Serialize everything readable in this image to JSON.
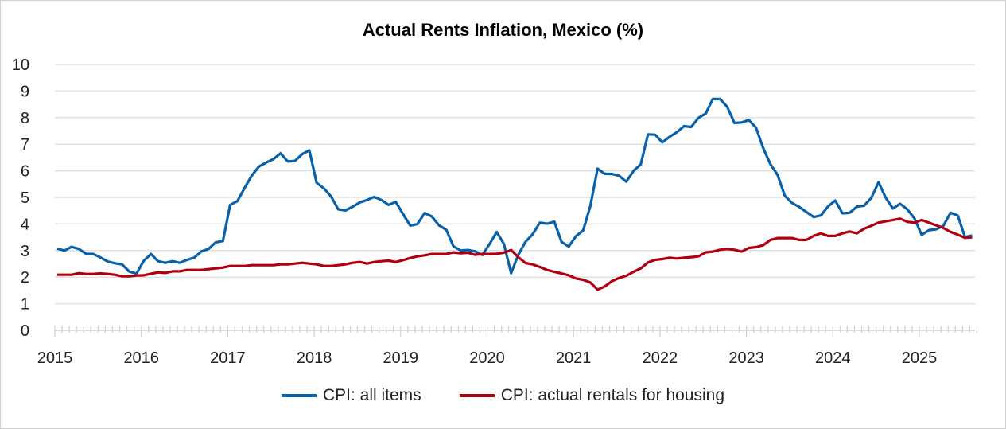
{
  "chart_data": {
    "type": "line",
    "title": "Actual Rents Inflation, Mexico (%)",
    "xlabel": "",
    "ylabel": "",
    "ylim": [
      0,
      10
    ],
    "yticks": [
      "0",
      "1",
      "2",
      "3",
      "4",
      "5",
      "6",
      "7",
      "8",
      "9",
      "10"
    ],
    "xticks": [
      "2015",
      "2016",
      "2017",
      "2018",
      "2019",
      "2020",
      "2021",
      "2022",
      "2023",
      "2024",
      "2025"
    ],
    "grid": true,
    "legend_position": "bottom",
    "x_start": "2015-01",
    "x_frequency": "monthly",
    "series": [
      {
        "name": "CPI: all items",
        "color": "#0861A8",
        "values": [
          3.07,
          3.0,
          3.14,
          3.06,
          2.88,
          2.87,
          2.74,
          2.59,
          2.52,
          2.48,
          2.21,
          2.13,
          2.61,
          2.87,
          2.6,
          2.54,
          2.6,
          2.54,
          2.65,
          2.73,
          2.97,
          3.06,
          3.31,
          3.36,
          4.72,
          4.86,
          5.35,
          5.82,
          6.16,
          6.31,
          6.44,
          6.66,
          6.35,
          6.37,
          6.63,
          6.77,
          5.55,
          5.34,
          5.04,
          4.55,
          4.51,
          4.65,
          4.81,
          4.9,
          5.02,
          4.9,
          4.72,
          4.83,
          4.37,
          3.94,
          4.0,
          4.41,
          4.28,
          3.95,
          3.78,
          3.16,
          3.0,
          3.02,
          2.97,
          2.83,
          3.24,
          3.7,
          3.25,
          2.15,
          2.84,
          3.33,
          3.62,
          4.05,
          4.01,
          4.09,
          3.33,
          3.15,
          3.54,
          3.76,
          4.67,
          6.08,
          5.89,
          5.88,
          5.81,
          5.59,
          6.0,
          6.24,
          7.37,
          7.36,
          7.07,
          7.28,
          7.45,
          7.68,
          7.65,
          7.99,
          8.15,
          8.7,
          8.7,
          8.41,
          7.8,
          7.82,
          7.91,
          7.62,
          6.85,
          6.25,
          5.84,
          5.06,
          4.79,
          4.64,
          4.45,
          4.26,
          4.32,
          4.66,
          4.88,
          4.4,
          4.42,
          4.65,
          4.69,
          4.98,
          5.57,
          4.99,
          4.58,
          4.76,
          4.55,
          4.21,
          3.59,
          3.77,
          3.8,
          3.93,
          4.42,
          4.32,
          3.51,
          3.57
        ]
      },
      {
        "name": "CPI: actual rentals for housing",
        "color": "#B00010",
        "values": [
          2.09,
          2.09,
          2.09,
          2.15,
          2.12,
          2.12,
          2.14,
          2.12,
          2.09,
          2.03,
          2.03,
          2.06,
          2.07,
          2.13,
          2.18,
          2.16,
          2.22,
          2.22,
          2.27,
          2.27,
          2.27,
          2.3,
          2.33,
          2.36,
          2.42,
          2.42,
          2.42,
          2.45,
          2.45,
          2.45,
          2.45,
          2.48,
          2.48,
          2.51,
          2.54,
          2.51,
          2.48,
          2.42,
          2.42,
          2.45,
          2.48,
          2.54,
          2.57,
          2.51,
          2.57,
          2.6,
          2.62,
          2.57,
          2.64,
          2.72,
          2.78,
          2.82,
          2.87,
          2.87,
          2.87,
          2.93,
          2.9,
          2.92,
          2.84,
          2.87,
          2.87,
          2.88,
          2.92,
          3.02,
          2.75,
          2.53,
          2.48,
          2.38,
          2.27,
          2.2,
          2.14,
          2.07,
          1.95,
          1.9,
          1.8,
          1.53,
          1.65,
          1.85,
          1.97,
          2.05,
          2.2,
          2.33,
          2.55,
          2.65,
          2.68,
          2.73,
          2.7,
          2.73,
          2.75,
          2.78,
          2.93,
          2.96,
          3.03,
          3.06,
          3.03,
          2.96,
          3.1,
          3.13,
          3.2,
          3.4,
          3.47,
          3.47,
          3.47,
          3.4,
          3.4,
          3.55,
          3.65,
          3.55,
          3.55,
          3.65,
          3.72,
          3.65,
          3.82,
          3.93,
          4.05,
          4.1,
          4.15,
          4.2,
          4.08,
          4.05,
          4.15,
          4.05,
          3.95,
          3.85,
          3.7,
          3.6,
          3.48,
          3.5
        ]
      }
    ]
  }
}
